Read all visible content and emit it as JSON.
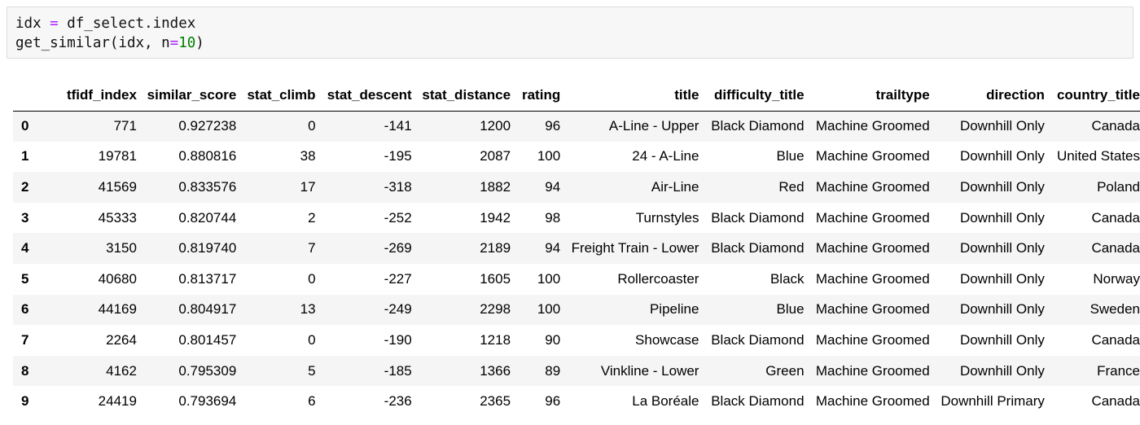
{
  "code": {
    "line1": {
      "var": "idx",
      "op": "=",
      "expr": "df_select.index"
    },
    "line2": {
      "call": "get_similar(idx, n",
      "op": "=",
      "num": "10",
      "close": ")"
    }
  },
  "table": {
    "columns": [
      "",
      "tfidf_index",
      "similar_score",
      "stat_climb",
      "stat_descent",
      "stat_distance",
      "rating",
      "title",
      "difficulty_title",
      "trailtype",
      "direction",
      "country_title"
    ],
    "rows": [
      {
        "index": "0",
        "cells": [
          "771",
          "0.927238",
          "0",
          "-141",
          "1200",
          "96",
          "A-Line - Upper",
          "Black Diamond",
          "Machine Groomed",
          "Downhill Only",
          "Canada"
        ]
      },
      {
        "index": "1",
        "cells": [
          "19781",
          "0.880816",
          "38",
          "-195",
          "2087",
          "100",
          "24 - A-Line",
          "Blue",
          "Machine Groomed",
          "Downhill Only",
          "United States"
        ]
      },
      {
        "index": "2",
        "cells": [
          "41569",
          "0.833576",
          "17",
          "-318",
          "1882",
          "94",
          "Air-Line",
          "Red",
          "Machine Groomed",
          "Downhill Only",
          "Poland"
        ]
      },
      {
        "index": "3",
        "cells": [
          "45333",
          "0.820744",
          "2",
          "-252",
          "1942",
          "98",
          "Turnstyles",
          "Black Diamond",
          "Machine Groomed",
          "Downhill Only",
          "Canada"
        ]
      },
      {
        "index": "4",
        "cells": [
          "3150",
          "0.819740",
          "7",
          "-269",
          "2189",
          "94",
          "Freight Train - Lower",
          "Black Diamond",
          "Machine Groomed",
          "Downhill Only",
          "Canada"
        ]
      },
      {
        "index": "5",
        "cells": [
          "40680",
          "0.813717",
          "0",
          "-227",
          "1605",
          "100",
          "Rollercoaster",
          "Black",
          "Machine Groomed",
          "Downhill Only",
          "Norway"
        ]
      },
      {
        "index": "6",
        "cells": [
          "44169",
          "0.804917",
          "13",
          "-249",
          "2298",
          "100",
          "Pipeline",
          "Blue",
          "Machine Groomed",
          "Downhill Only",
          "Sweden"
        ]
      },
      {
        "index": "7",
        "cells": [
          "2264",
          "0.801457",
          "0",
          "-190",
          "1218",
          "90",
          "Showcase",
          "Black Diamond",
          "Machine Groomed",
          "Downhill Only",
          "Canada"
        ]
      },
      {
        "index": "8",
        "cells": [
          "4162",
          "0.795309",
          "5",
          "-185",
          "1366",
          "89",
          "Vinkline - Lower",
          "Green",
          "Machine Groomed",
          "Downhill Only",
          "France"
        ]
      },
      {
        "index": "9",
        "cells": [
          "24419",
          "0.793694",
          "6",
          "-236",
          "2365",
          "96",
          "La Boréale",
          "Black Diamond",
          "Machine Groomed",
          "Downhill Primary",
          "Canada"
        ]
      }
    ]
  }
}
